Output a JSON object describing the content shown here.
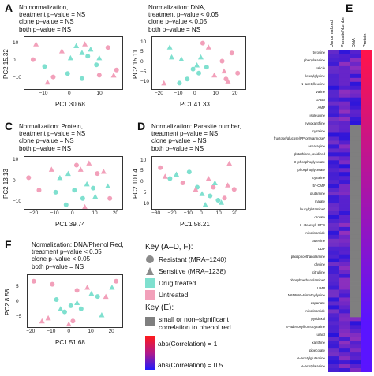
{
  "colors": {
    "drug_treated": "#7fe0cf",
    "untreated": "#f2a0ba",
    "shape_gray": "#8a8a8a",
    "nonsig": "#7f7f7f",
    "heat_high": "#ff1a1a",
    "heat_low": "#1a1aff"
  },
  "panels": [
    {
      "letter": "A",
      "annotation": [
        "No normalization,",
        "treatment p–value = NS",
        "clone p–value = NS",
        "both p–value = NS"
      ],
      "xlabel": "PC1 30.68",
      "ylabel": "PC2 15.32",
      "xticks": [
        "−10",
        "0",
        "10"
      ],
      "yticks": [
        "10",
        "0",
        "−10"
      ]
    },
    {
      "letter": "",
      "annotation": [
        "Normalization: DNA,",
        "treatment p–value < 0.05",
        "clone p–value < 0.05",
        "both p–value = NS"
      ],
      "xlabel": "PC1 41.33",
      "ylabel": "PC2 15.11",
      "xticks": [
        "−20",
        "−10",
        "0",
        "10",
        "20"
      ],
      "yticks": [
        "10",
        "5",
        "0",
        "−5",
        "−10"
      ]
    },
    {
      "letter": "C",
      "annotation": [
        "Normalization: Protein,",
        "treatment p–value = NS",
        "clone p–value = NS",
        "both p–value = NS"
      ],
      "xlabel": "PC1 39.74",
      "ylabel": "PC2 13.13",
      "xticks": [
        "−20",
        "−10",
        "0",
        "10",
        "20"
      ],
      "yticks": [
        "10",
        "0",
        "−10"
      ]
    },
    {
      "letter": "D",
      "annotation": [
        "Normalization: Parasite number,",
        "treatment p–value = NS",
        "clone p–value = NS",
        "both p–value = NS"
      ],
      "xlabel": "PC1 58.21",
      "ylabel": "PC2 10.04",
      "xticks": [
        "−30",
        "−20",
        "−10",
        "0",
        "10",
        "20"
      ],
      "yticks": [
        "10",
        "5",
        "0",
        "−5",
        "−10"
      ]
    },
    {
      "letter": "F",
      "annotation": [
        "Normalization: DNA/Phenol Red,",
        "treatment p–value < 0.05",
        "clone p–value < 0.05",
        "both p–value = NS"
      ],
      "xlabel": "PC1 51.68",
      "ylabel": "PC2 8.58",
      "xticks": [
        "−20",
        "−10",
        "0",
        "10",
        "20"
      ],
      "yticks": [
        "5",
        "0",
        "−5"
      ]
    }
  ],
  "key_af": {
    "title": "Key (A–D, F):",
    "items": [
      "Resistant (MRA–1240)",
      "Sensitive (MRA–1238)",
      "Drug treated",
      "Untreated"
    ]
  },
  "key_e": {
    "title": "Key (E):",
    "nonsig_label": [
      "small or non–significant",
      "correlation to phenol red"
    ],
    "high_label": "abs(Correlation) = 1",
    "low_label": "abs(Correlation) = 0.5"
  },
  "heatmap": {
    "letter": "E",
    "columns": [
      "Unnormalized",
      "ParasiteNumber",
      "DNA",
      "Protein"
    ],
    "rows": [
      "tyrosine",
      "leucine",
      "phenylalanine",
      "valylleucine",
      "salicin",
      "tryptophan",
      "leucylglycine",
      "isoleucine",
      "N–acetylleucine",
      "betaine",
      "valine",
      "glutathione, reduced",
      "GABA",
      "leucylalanine",
      "AMP",
      "HEPES",
      "isoleucine",
      "proline",
      "hypoxanthine",
      "valylglycine",
      "cysteine",
      "trans–4–hydroxyproline",
      "fructose/glucose/PP or Mannose*",
      "putrescine",
      "asparagine",
      "glycerol 3–phosphate",
      "glutathione, oxidized",
      "5′–guanosine",
      "3–phosphoglycerate",
      "inosine",
      "phosphoglycerate",
      "fumarate",
      "cysteine",
      "spermidine",
      "5′–CMP",
      "prolylglutamine",
      "glutamine",
      "citrate",
      "malate",
      "threonine",
      "leucylglutamine*",
      "methionine",
      "orotate",
      "myo–inositol",
      "1–stearoyl–GPC",
      "1–stearoyl–GPE",
      "nicotinamide",
      "adenosine",
      "adenine",
      "acetylcarnitine",
      "UDP",
      "heme",
      "phosphoethanolamine",
      "ornithine",
      "glycine",
      "arginine",
      "citrulline",
      "erythronate*",
      "phosphoethanolamine*",
      "pyroglutamine*",
      "UMP",
      "pyroglutamine",
      "N6N6N6–trimethyllysine",
      "cytidine diphosphate",
      "aspartate",
      "guanine",
      "nicotinamide",
      "methylphosphate",
      "pyridoxal",
      "pyridoxine",
      "S–adenosylhomocysteine",
      "glutamate",
      "uracil",
      "ADP–ribose",
      "xanthine",
      "threonate",
      "pipecolate",
      "alanine",
      "N–acetylglutamine",
      "glycerate",
      "N–acetylalanine",
      "1–stearoyl–2–arachidonoyl–GPE"
    ]
  },
  "chart_data": [
    {
      "type": "scatter",
      "panel": "A",
      "xlabel": "PC1 30.68",
      "ylabel": "PC2 15.32",
      "xlim": [
        -17,
        17
      ],
      "ylim": [
        -16,
        14
      ],
      "series": [
        {
          "name": "Resistant Drug treated",
          "points": [
            [
              -10,
              -3
            ],
            [
              -2,
              -7
            ],
            [
              5,
              3
            ],
            [
              8,
              -2
            ],
            [
              3,
              -10
            ]
          ]
        },
        {
          "name": "Resistant Untreated",
          "points": [
            [
              -14,
              1
            ],
            [
              -7,
              -9
            ],
            [
              9,
              -8
            ],
            [
              12,
              8
            ],
            [
              15,
              -5
            ]
          ]
        },
        {
          "name": "Sensitive Drug treated",
          "points": [
            [
              1,
              9
            ],
            [
              3,
              5
            ],
            [
              6,
              7
            ],
            [
              9,
              2
            ],
            [
              -1,
              2
            ]
          ]
        },
        {
          "name": "Sensitive Untreated",
          "points": [
            [
              -13,
              10
            ],
            [
              -9,
              -12
            ],
            [
              4,
              10
            ],
            [
              14,
              -8
            ],
            [
              -4,
              6
            ]
          ]
        }
      ]
    },
    {
      "type": "scatter",
      "panel": "B",
      "xlabel": "PC1 41.33",
      "ylabel": "PC2 15.11",
      "xlim": [
        -24,
        24
      ],
      "ylim": [
        -13,
        13
      ],
      "series": [
        {
          "name": "Resistant Drug treated",
          "points": [
            [
              -3,
              -3
            ],
            [
              0,
              -5
            ],
            [
              -10,
              -10
            ],
            [
              4,
              -2
            ],
            [
              -6,
              -8
            ]
          ]
        },
        {
          "name": "Resistant Untreated",
          "points": [
            [
              2,
              10
            ],
            [
              17,
              5
            ],
            [
              20,
              -5
            ],
            [
              12,
              1
            ],
            [
              14,
              -8
            ]
          ]
        },
        {
          "name": "Sensitive Drug treated",
          "points": [
            [
              -15,
              8
            ],
            [
              -9,
              2
            ],
            [
              -1,
              -1
            ],
            [
              1,
              3
            ],
            [
              -14,
              3
            ]
          ]
        },
        {
          "name": "Sensitive Untreated",
          "points": [
            [
              5,
              8
            ],
            [
              13,
              -4
            ],
            [
              15,
              -9
            ],
            [
              -18,
              -10
            ],
            [
              8,
              -6
            ]
          ]
        }
      ]
    },
    {
      "type": "scatter",
      "panel": "C",
      "xlabel": "PC1 39.74",
      "ylabel": "PC2 13.13",
      "xlim": [
        -25,
        22
      ],
      "ylim": [
        -13,
        12
      ],
      "series": [
        {
          "name": "Resistant Drug treated",
          "points": [
            [
              -10,
              -5
            ],
            [
              -5,
              -11
            ],
            [
              -1,
              -4
            ],
            [
              3,
              -8
            ],
            [
              8,
              -3
            ]
          ]
        },
        {
          "name": "Resistant Untreated",
          "points": [
            [
              -23,
              2
            ],
            [
              -18,
              -4
            ],
            [
              0,
              8
            ],
            [
              10,
              4
            ],
            [
              16,
              -8
            ]
          ]
        },
        {
          "name": "Sensitive Drug treated",
          "points": [
            [
              -8,
              2
            ],
            [
              -4,
              4
            ],
            [
              5,
              -1
            ],
            [
              9,
              -7
            ],
            [
              15,
              -2
            ]
          ]
        },
        {
          "name": "Sensitive Untreated",
          "points": [
            [
              -12,
              6
            ],
            [
              2,
              6
            ],
            [
              6,
              9
            ],
            [
              13,
              5
            ],
            [
              4,
              -12
            ]
          ]
        }
      ]
    },
    {
      "type": "scatter",
      "panel": "D",
      "xlabel": "PC1 58.21",
      "ylabel": "PC2 10.04",
      "xlim": [
        -33,
        25
      ],
      "ylim": [
        -12,
        12
      ],
      "series": [
        {
          "name": "Resistant Drug treated",
          "points": [
            [
              -22,
              2
            ],
            [
              -5,
              -2
            ],
            [
              3,
              -6
            ],
            [
              8,
              -8
            ],
            [
              -10,
              5
            ]
          ]
        },
        {
          "name": "Resistant Untreated",
          "points": [
            [
              -28,
              7
            ],
            [
              -14,
              0
            ],
            [
              5,
              -2
            ],
            [
              12,
              -7
            ],
            [
              18,
              -3
            ]
          ]
        },
        {
          "name": "Sensitive Drug treated",
          "points": [
            [
              -18,
              4
            ],
            [
              -2,
              -5
            ],
            [
              6,
              0
            ],
            [
              0,
              -10
            ],
            [
              10,
              -9
            ]
          ]
        },
        {
          "name": "Sensitive Untreated",
          "points": [
            [
              -25,
              3
            ],
            [
              -6,
              -3
            ],
            [
              2,
              2
            ],
            [
              15,
              9
            ],
            [
              14,
              -1
            ]
          ]
        }
      ]
    },
    {
      "type": "scatter",
      "panel": "F",
      "xlabel": "PC1 51.68",
      "ylabel": "PC2 8.58",
      "xlim": [
        -22,
        24
      ],
      "ylim": [
        -8,
        9
      ],
      "series": [
        {
          "name": "Resistant Drug treated",
          "points": [
            [
              -8,
              1
            ],
            [
              -4,
              -3
            ],
            [
              4,
              -2
            ],
            [
              12,
              2
            ],
            [
              -1,
              -1
            ]
          ]
        },
        {
          "name": "Resistant Untreated",
          "points": [
            [
              -19,
              7
            ],
            [
              -10,
              6
            ],
            [
              2,
              4
            ],
            [
              21,
              7
            ],
            [
              0,
              -6
            ]
          ]
        },
        {
          "name": "Sensitive Drug treated",
          "points": [
            [
              -6,
              -2
            ],
            [
              2,
              0
            ],
            [
              9,
              3
            ],
            [
              19,
              5
            ],
            [
              14,
              -4
            ]
          ]
        },
        {
          "name": "Sensitive Untreated",
          "points": [
            [
              -12,
              -5
            ],
            [
              -2,
              -7
            ],
            [
              7,
              5
            ],
            [
              16,
              2
            ],
            [
              -15,
              -6
            ]
          ]
        }
      ]
    }
  ]
}
